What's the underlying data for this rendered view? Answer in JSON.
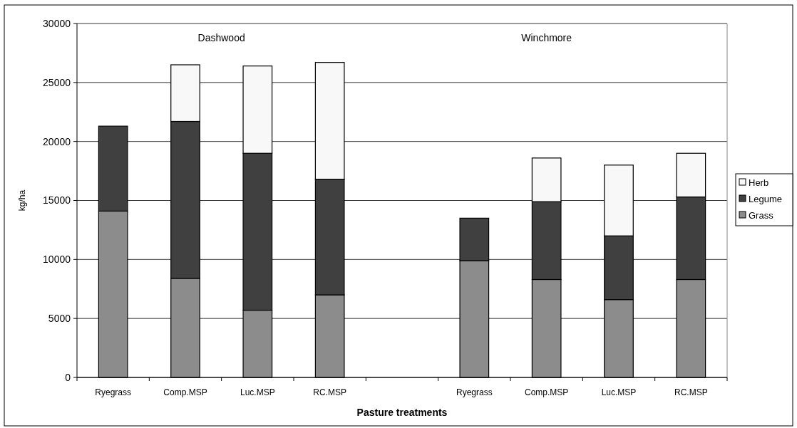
{
  "chart_data": {
    "type": "bar",
    "stacked": true,
    "xlabel": "Pasture treatments",
    "ylabel": "kg/ha",
    "categories": [
      "Ryegrass",
      "Comp.MSP",
      "Luc.MSP",
      "RC.MSP",
      null,
      "Ryegrass",
      "Comp.MSP",
      "Luc.MSP",
      "RC.MSP"
    ],
    "series": [
      {
        "name": "Grass",
        "color": "#8c8c8c",
        "values": [
          14100,
          8400,
          5700,
          7000,
          null,
          9900,
          8300,
          6600,
          8300
        ]
      },
      {
        "name": "Legume",
        "color": "#404040",
        "values": [
          7200,
          13300,
          13300,
          9800,
          null,
          3600,
          6600,
          5400,
          7000
        ]
      },
      {
        "name": "Herb",
        "color": "#f8f8f8",
        "values": [
          0,
          4800,
          7400,
          9900,
          null,
          0,
          3700,
          6000,
          3700
        ]
      }
    ],
    "ylim": [
      0,
      30000
    ],
    "yticks": [
      0,
      5000,
      10000,
      15000,
      20000,
      25000,
      30000
    ],
    "grid": "y",
    "legend": "right",
    "annotations": [
      "Dashwood",
      "Winchmore"
    ]
  }
}
